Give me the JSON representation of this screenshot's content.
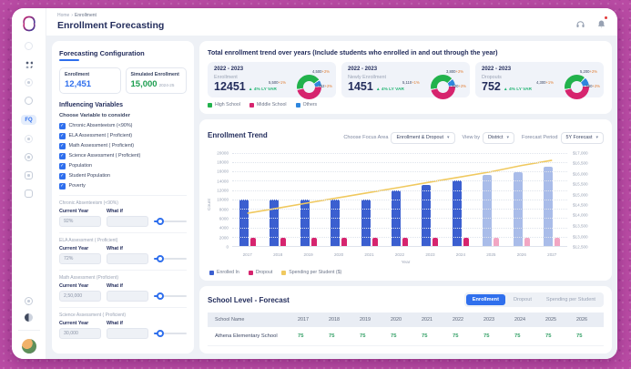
{
  "icons": {
    "chevron_down": "▾",
    "arrow_up": "▲",
    "check": "✓",
    "breadcrumb_sep": "›"
  },
  "sidebar": {
    "active_label": "FQ"
  },
  "header": {
    "breadcrumb": {
      "home": "Home",
      "current": "Enrollment"
    },
    "title": "Enrollment Forecasting"
  },
  "config_panel": {
    "title": "Forecasting Configuration",
    "enrollment": {
      "label": "Enrollment",
      "value": "12,451"
    },
    "simulated": {
      "label": "Simulated Enrollment",
      "value": "15,000",
      "period": "2024-25"
    },
    "influencing_title": "Influencing Variables",
    "choose_label": "Choose Variable to consider",
    "current_year_label": "Current Year",
    "what_if_label": "What if",
    "checkboxes": [
      "Chronic Absenteeism (<90%)",
      "ELA Assessment ( Proficient)",
      "Math Assessment ( Proficient)",
      "Science Assessment ( Proficient)",
      "Population",
      "Student Population",
      "Poverty"
    ],
    "sliders": [
      {
        "label": "Chronic Absenteeism (<90%)",
        "current_value": "92%"
      },
      {
        "label": "ELA Assessment ( Proficient)",
        "current_value": "72%"
      },
      {
        "label": "Math Assessment (Proficient)",
        "current_value": "2,50,000"
      },
      {
        "label": "Science Assessment ( Proficient)",
        "current_value": "30,000"
      }
    ]
  },
  "summary": {
    "title": "Total enrollment trend over years (Include students who enrolled in and out through the year)",
    "cards": [
      {
        "period": "2022 - 2023",
        "label": "Enrollment",
        "value": "12451",
        "variance": "4% LY VAR",
        "donut": {
          "segments": [
            {
              "color": "#22b24c",
              "frac": 0.44
            },
            {
              "color": "#2e86de",
              "frac": 0.09
            },
            {
              "color": "#d6246e",
              "frac": 0.47
            }
          ],
          "lbl_top": {
            "v": "4,500",
            "p": "+2%"
          },
          "lbl_right": {
            "v": "752",
            "p": "+2%"
          },
          "lbl_left": {
            "v": "5,500",
            "p": "+1%"
          }
        }
      },
      {
        "period": "2022 - 2023",
        "label": "Newly Enrollment",
        "value": "1451",
        "variance": "4% LY VAR",
        "donut": {
          "segments": [
            {
              "color": "#22b24c",
              "frac": 0.42
            },
            {
              "color": "#2e86de",
              "frac": 0.1
            },
            {
              "color": "#d6246e",
              "frac": 0.48
            }
          ],
          "lbl_top": {
            "v": "3,800",
            "p": "+2%"
          },
          "lbl_right": {
            "v": "620",
            "p": "+2%"
          },
          "lbl_left": {
            "v": "5,110",
            "p": "+1%"
          }
        }
      },
      {
        "period": "2022 - 2023",
        "label": "Dropouts",
        "value": "752",
        "variance": "4% LY VAR",
        "donut": {
          "segments": [
            {
              "color": "#22b24c",
              "frac": 0.4
            },
            {
              "color": "#2e86de",
              "frac": 0.12
            },
            {
              "color": "#d6246e",
              "frac": 0.48
            }
          ],
          "lbl_top": {
            "v": "5,200",
            "p": "+2%"
          },
          "lbl_right": {
            "v": "560",
            "p": "+2%"
          },
          "lbl_left": {
            "v": "4,300",
            "p": "+1%"
          }
        }
      }
    ],
    "legend": [
      {
        "label": "High School",
        "color": "#22b24c"
      },
      {
        "label": "Middle School",
        "color": "#d6246e"
      },
      {
        "label": "Others",
        "color": "#2e86de"
      }
    ]
  },
  "trend": {
    "title": "Enrollment Trend",
    "controls": [
      {
        "label": "Choose Focus Area",
        "value": "Enrollment & Dropout"
      },
      {
        "label": "View by",
        "value": "District"
      },
      {
        "label": "Forecast Period",
        "value": "5Y Forecast"
      }
    ]
  },
  "chart_data": {
    "type": "bar+line",
    "title": "Enrollment Trend",
    "categories": [
      "2017",
      "2018",
      "2019",
      "2020",
      "2021",
      "2022",
      "2023",
      "2024",
      "2025",
      "2026",
      "2027"
    ],
    "series": [
      {
        "name": "Enrolled In",
        "type": "bar",
        "color": "#3b5fd0",
        "forecast_color": "#a9bce9",
        "values": [
          10000,
          10000,
          10000,
          10000,
          10000,
          12000,
          13000,
          14000,
          15200,
          15900,
          16900
        ]
      },
      {
        "name": "Dropout",
        "type": "bar",
        "color": "#d6246e",
        "forecast_color": "#f2a6c3",
        "values": [
          1700,
          1700,
          1700,
          1700,
          1700,
          1700,
          1700,
          1700,
          1700,
          1700,
          1700
        ]
      },
      {
        "name": "Spending per Student ($)",
        "type": "line",
        "axis": "right",
        "color": "#f0c95f",
        "values": [
          14100,
          14350,
          14600,
          14850,
          15100,
          15350,
          15600,
          15850,
          16100,
          16400,
          16650
        ]
      }
    ],
    "forecast_from_index": 8,
    "xlabel": "Year",
    "ylabel": "Count",
    "y_left": {
      "min": 0,
      "max": 20000,
      "step": 2000
    },
    "y_right": {
      "min": 12500,
      "max": 17000
    },
    "y_right_ticks": [
      "$17,000",
      "$16,500",
      "$16,000",
      "$15,500",
      "$15,000",
      "$14,500",
      "$14,000",
      "$13,500",
      "$13,000",
      "$12,500"
    ],
    "grid": true,
    "legend_position": "bottom-left",
    "legend": [
      {
        "label": "Enrolled In",
        "color": "#3b5fd0"
      },
      {
        "label": "Dropout",
        "color": "#d6246e"
      },
      {
        "label": "Spending per Student ($)",
        "color": "#f0c95f"
      }
    ]
  },
  "forecast_table": {
    "title": "School Level - Forecast",
    "tabs": [
      "Enrollment",
      "Dropout",
      "Spending per Student"
    ],
    "active_tab": "Enrollment",
    "columns": [
      "School Name",
      "2017",
      "2018",
      "2019",
      "2020",
      "2021",
      "2022",
      "2023",
      "2024",
      "2025",
      "2026"
    ],
    "rows": [
      {
        "name": "Athena Elementary School",
        "values": [
          "75",
          "75",
          "75",
          "75",
          "75",
          "75",
          "75",
          "75",
          "75",
          "75"
        ]
      }
    ]
  }
}
